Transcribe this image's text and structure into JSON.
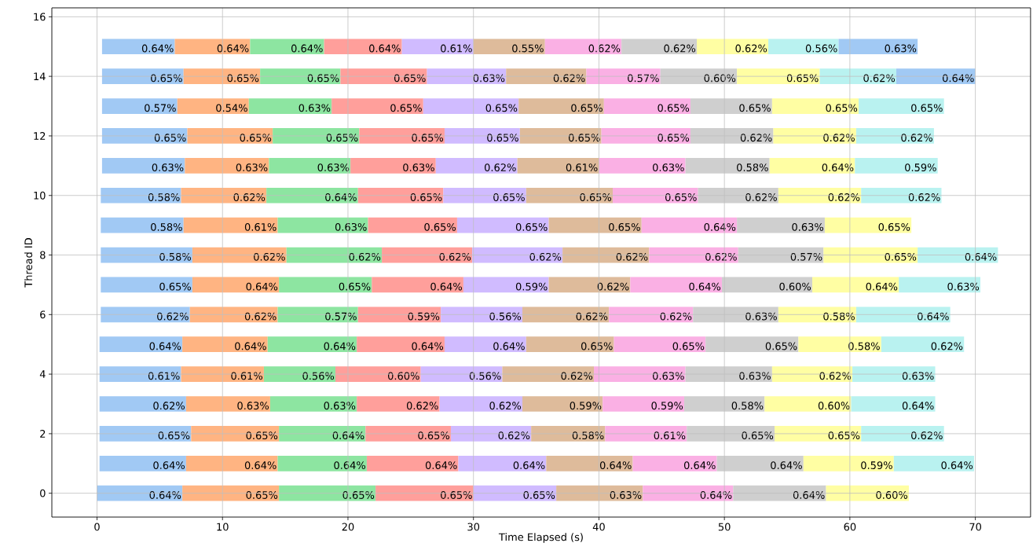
{
  "chart_data": {
    "type": "bar",
    "orientation": "horizontal",
    "xlabel": "Time Elapsed (s)",
    "ylabel": "Thread ID",
    "x": [
      0,
      1,
      2,
      3,
      4,
      5,
      6,
      7,
      8,
      9,
      10,
      11,
      12,
      13,
      14,
      15
    ],
    "xlim": [
      -3.6,
      74.4
    ],
    "xticks": [
      0,
      10,
      20,
      30,
      40,
      50,
      60,
      70
    ],
    "ylim": [
      -0.8,
      16.3
    ],
    "yticks": [
      0,
      2,
      4,
      6,
      8,
      10,
      12,
      14,
      16
    ],
    "grid": true,
    "series": [
      {
        "color": "#a1c9f4",
        "base": [
          0.0,
          0.2,
          0.2,
          0.2,
          0.2,
          0.2,
          0.3,
          0.3,
          0.3,
          0.3,
          0.3,
          0.4,
          0.4,
          0.4,
          0.4,
          0.4
        ],
        "values": [
          6.8,
          6.9,
          7.3,
          6.9,
          6.5,
          6.6,
          7.1,
          7.3,
          7.3,
          6.6,
          6.4,
          6.6,
          6.8,
          6.0,
          6.5,
          5.8
        ]
      },
      {
        "color": "#ffb482",
        "base": [
          6.8,
          7.1,
          7.5,
          7.1,
          6.7,
          6.8,
          7.4,
          7.6,
          7.6,
          6.9,
          6.7,
          7.0,
          7.2,
          6.4,
          6.9,
          6.2
        ],
        "values": [
          7.7,
          7.3,
          7.0,
          6.7,
          6.6,
          6.8,
          7.0,
          6.9,
          7.5,
          7.5,
          6.8,
          6.7,
          6.8,
          5.7,
          6.1,
          6.0
        ]
      },
      {
        "color": "#8de5a1",
        "base": [
          14.5,
          14.4,
          14.5,
          13.8,
          13.3,
          13.6,
          14.4,
          14.5,
          15.1,
          14.4,
          13.5,
          13.7,
          14.0,
          12.1,
          13.0,
          12.2
        ],
        "values": [
          7.7,
          7.1,
          6.9,
          6.9,
          5.7,
          7.1,
          6.4,
          7.4,
          7.6,
          7.2,
          7.3,
          6.5,
          6.9,
          6.6,
          6.4,
          5.9
        ]
      },
      {
        "color": "#ff9f9b",
        "base": [
          22.2,
          21.5,
          21.4,
          20.7,
          19.0,
          20.7,
          20.8,
          21.9,
          22.7,
          21.6,
          20.8,
          20.2,
          20.9,
          18.7,
          19.4,
          18.1
        ],
        "values": [
          7.8,
          7.3,
          6.8,
          6.6,
          6.8,
          7.0,
          6.6,
          7.3,
          7.2,
          7.1,
          6.8,
          6.8,
          6.8,
          7.3,
          6.9,
          6.2
        ]
      },
      {
        "color": "#d0bbff",
        "base": [
          30.0,
          28.8,
          28.2,
          27.3,
          25.8,
          27.7,
          27.4,
          29.2,
          29.9,
          28.7,
          27.6,
          27.0,
          27.7,
          26.0,
          26.3,
          24.3
        ],
        "values": [
          6.6,
          7.0,
          6.4,
          6.6,
          6.5,
          6.5,
          6.5,
          6.8,
          7.2,
          7.3,
          6.6,
          6.5,
          6.0,
          7.6,
          6.3,
          5.7
        ]
      },
      {
        "color": "#debb9b",
        "base": [
          36.6,
          35.8,
          34.6,
          33.9,
          32.3,
          34.2,
          33.9,
          36.0,
          37.1,
          36.0,
          34.2,
          33.5,
          33.7,
          33.6,
          32.6,
          30.0
        ],
        "values": [
          6.9,
          6.9,
          5.9,
          6.4,
          7.3,
          7.0,
          6.9,
          6.5,
          6.9,
          7.4,
          6.9,
          6.5,
          6.5,
          6.8,
          6.4,
          5.7
        ]
      },
      {
        "color": "#fab0e4",
        "base": [
          43.5,
          42.7,
          40.5,
          40.3,
          39.6,
          41.2,
          40.8,
          42.5,
          44.0,
          43.4,
          41.1,
          40.0,
          40.2,
          40.4,
          39.0,
          35.7
        ],
        "values": [
          7.2,
          6.7,
          6.5,
          6.5,
          7.3,
          7.3,
          6.7,
          7.3,
          7.1,
          7.6,
          6.8,
          6.9,
          7.1,
          6.9,
          5.9,
          6.1
        ]
      },
      {
        "color": "#cfcfcf",
        "base": [
          50.7,
          49.4,
          47.0,
          46.8,
          46.9,
          48.5,
          47.5,
          49.8,
          51.1,
          51.0,
          47.9,
          46.9,
          47.3,
          47.3,
          44.9,
          41.8
        ],
        "values": [
          7.4,
          6.9,
          7.0,
          6.4,
          6.9,
          7.4,
          6.8,
          7.2,
          6.8,
          7.0,
          6.4,
          6.7,
          6.6,
          6.5,
          6.1,
          6.0
        ]
      },
      {
        "color": "#fffea3",
        "base": [
          58.1,
          56.3,
          54.0,
          53.2,
          53.8,
          55.9,
          54.3,
          57.0,
          57.9,
          58.0,
          54.3,
          53.6,
          53.9,
          53.8,
          51.0,
          47.8
        ],
        "values": [
          6.6,
          7.2,
          6.9,
          6.9,
          6.4,
          6.6,
          6.2,
          6.9,
          7.5,
          6.9,
          6.6,
          6.8,
          6.6,
          6.9,
          6.6,
          5.7
        ]
      },
      {
        "color": "#b9f2f0",
        "base": [
          null,
          63.5,
          60.9,
          60.1,
          60.2,
          62.5,
          60.5,
          63.9,
          65.4,
          null,
          60.9,
          60.4,
          60.5,
          60.7,
          57.6,
          53.5
        ],
        "values": [
          null,
          6.4,
          6.6,
          6.7,
          6.6,
          6.6,
          7.5,
          6.5,
          6.4,
          null,
          6.4,
          6.6,
          6.2,
          6.8,
          6.1,
          5.6
        ]
      },
      {
        "color": "#a1c9f4",
        "base": [
          null,
          null,
          null,
          null,
          null,
          null,
          null,
          null,
          null,
          null,
          null,
          null,
          null,
          null,
          63.7,
          59.1
        ],
        "values": [
          null,
          null,
          null,
          null,
          null,
          null,
          null,
          null,
          null,
          null,
          null,
          null,
          null,
          null,
          6.3,
          6.3
        ]
      }
    ],
    "annotations": [
      {
        "text": "0.64%",
        "x": 6.8,
        "y": 0
      },
      {
        "text": "0.65%",
        "x": 14.5,
        "y": 0
      },
      {
        "text": "0.65%",
        "x": 22.2,
        "y": 0
      },
      {
        "text": "0.65%",
        "x": 30.0,
        "y": 0
      },
      {
        "text": "0.65%",
        "x": 36.6,
        "y": 0
      },
      {
        "text": "0.63%",
        "x": 43.5,
        "y": 0
      },
      {
        "text": "0.64%",
        "x": 50.7,
        "y": 0
      },
      {
        "text": "0.64%",
        "x": 58.1,
        "y": 0
      },
      {
        "text": "0.60%",
        "x": 64.7,
        "y": 0
      },
      {
        "text": "0.64%",
        "x": 7.1,
        "y": 1
      },
      {
        "text": "0.64%",
        "x": 14.4,
        "y": 1
      },
      {
        "text": "0.64%",
        "x": 21.5,
        "y": 1
      },
      {
        "text": "0.64%",
        "x": 28.8,
        "y": 1
      },
      {
        "text": "0.64%",
        "x": 35.8,
        "y": 1
      },
      {
        "text": "0.64%",
        "x": 42.7,
        "y": 1
      },
      {
        "text": "0.64%",
        "x": 49.4,
        "y": 1
      },
      {
        "text": "0.64%",
        "x": 56.3,
        "y": 1
      },
      {
        "text": "0.59%",
        "x": 63.5,
        "y": 1
      },
      {
        "text": "0.64%",
        "x": 69.9,
        "y": 1
      },
      {
        "text": "0.65%",
        "x": 7.5,
        "y": 2
      },
      {
        "text": "0.65%",
        "x": 14.5,
        "y": 2
      },
      {
        "text": "0.64%",
        "x": 21.4,
        "y": 2
      },
      {
        "text": "0.65%",
        "x": 28.2,
        "y": 2
      },
      {
        "text": "0.62%",
        "x": 34.6,
        "y": 2
      },
      {
        "text": "0.58%",
        "x": 40.5,
        "y": 2
      },
      {
        "text": "0.61%",
        "x": 47.0,
        "y": 2
      },
      {
        "text": "0.65%",
        "x": 54.0,
        "y": 2
      },
      {
        "text": "0.65%",
        "x": 60.9,
        "y": 2
      },
      {
        "text": "0.62%",
        "x": 67.5,
        "y": 2
      },
      {
        "text": "0.62%",
        "x": 7.1,
        "y": 3
      },
      {
        "text": "0.63%",
        "x": 13.8,
        "y": 3
      },
      {
        "text": "0.63%",
        "x": 20.7,
        "y": 3
      },
      {
        "text": "0.62%",
        "x": 27.3,
        "y": 3
      },
      {
        "text": "0.62%",
        "x": 33.9,
        "y": 3
      },
      {
        "text": "0.59%",
        "x": 40.3,
        "y": 3
      },
      {
        "text": "0.59%",
        "x": 46.8,
        "y": 3
      },
      {
        "text": "0.58%",
        "x": 53.2,
        "y": 3
      },
      {
        "text": "0.60%",
        "x": 60.1,
        "y": 3
      },
      {
        "text": "0.64%",
        "x": 66.8,
        "y": 3
      },
      {
        "text": "0.61%",
        "x": 6.7,
        "y": 4
      },
      {
        "text": "0.61%",
        "x": 13.3,
        "y": 4
      },
      {
        "text": "0.56%",
        "x": 19.0,
        "y": 4
      },
      {
        "text": "0.60%",
        "x": 25.8,
        "y": 4
      },
      {
        "text": "0.56%",
        "x": 32.3,
        "y": 4
      },
      {
        "text": "0.62%",
        "x": 39.6,
        "y": 4
      },
      {
        "text": "0.63%",
        "x": 46.9,
        "y": 4
      },
      {
        "text": "0.63%",
        "x": 53.8,
        "y": 4
      },
      {
        "text": "0.62%",
        "x": 60.2,
        "y": 4
      },
      {
        "text": "0.63%",
        "x": 66.8,
        "y": 4
      },
      {
        "text": "0.64%",
        "x": 6.8,
        "y": 5
      },
      {
        "text": "0.64%",
        "x": 13.6,
        "y": 5
      },
      {
        "text": "0.64%",
        "x": 20.7,
        "y": 5
      },
      {
        "text": "0.64%",
        "x": 27.7,
        "y": 5
      },
      {
        "text": "0.64%",
        "x": 34.2,
        "y": 5
      },
      {
        "text": "0.65%",
        "x": 41.2,
        "y": 5
      },
      {
        "text": "0.65%",
        "x": 48.5,
        "y": 5
      },
      {
        "text": "0.65%",
        "x": 55.9,
        "y": 5
      },
      {
        "text": "0.58%",
        "x": 62.5,
        "y": 5
      },
      {
        "text": "0.62%",
        "x": 69.1,
        "y": 5
      },
      {
        "text": "0.62%",
        "x": 7.4,
        "y": 6
      },
      {
        "text": "0.62%",
        "x": 14.4,
        "y": 6
      },
      {
        "text": "0.57%",
        "x": 20.8,
        "y": 6
      },
      {
        "text": "0.59%",
        "x": 27.4,
        "y": 6
      },
      {
        "text": "0.56%",
        "x": 33.9,
        "y": 6
      },
      {
        "text": "0.62%",
        "x": 40.8,
        "y": 6
      },
      {
        "text": "0.62%",
        "x": 47.5,
        "y": 6
      },
      {
        "text": "0.63%",
        "x": 54.3,
        "y": 6
      },
      {
        "text": "0.58%",
        "x": 60.5,
        "y": 6
      },
      {
        "text": "0.64%",
        "x": 68.0,
        "y": 6
      },
      {
        "text": "0.65%",
        "x": 7.6,
        "y": 7
      },
      {
        "text": "0.64%",
        "x": 14.5,
        "y": 7
      },
      {
        "text": "0.65%",
        "x": 21.9,
        "y": 7
      },
      {
        "text": "0.64%",
        "x": 29.2,
        "y": 7
      },
      {
        "text": "0.59%",
        "x": 36.0,
        "y": 7
      },
      {
        "text": "0.62%",
        "x": 42.5,
        "y": 7
      },
      {
        "text": "0.64%",
        "x": 49.8,
        "y": 7
      },
      {
        "text": "0.60%",
        "x": 57.0,
        "y": 7
      },
      {
        "text": "0.64%",
        "x": 63.9,
        "y": 7
      },
      {
        "text": "0.63%",
        "x": 70.4,
        "y": 7
      },
      {
        "text": "0.58%",
        "x": 7.6,
        "y": 8
      },
      {
        "text": "0.62%",
        "x": 15.1,
        "y": 8
      },
      {
        "text": "0.62%",
        "x": 22.7,
        "y": 8
      },
      {
        "text": "0.62%",
        "x": 29.9,
        "y": 8
      },
      {
        "text": "0.62%",
        "x": 37.1,
        "y": 8
      },
      {
        "text": "0.62%",
        "x": 44.0,
        "y": 8
      },
      {
        "text": "0.62%",
        "x": 51.1,
        "y": 8
      },
      {
        "text": "0.57%",
        "x": 57.9,
        "y": 8
      },
      {
        "text": "0.65%",
        "x": 65.4,
        "y": 8
      },
      {
        "text": "0.64%",
        "x": 71.8,
        "y": 8
      },
      {
        "text": "0.58%",
        "x": 6.9,
        "y": 9
      },
      {
        "text": "0.61%",
        "x": 14.4,
        "y": 9
      },
      {
        "text": "0.63%",
        "x": 21.6,
        "y": 9
      },
      {
        "text": "0.65%",
        "x": 28.7,
        "y": 9
      },
      {
        "text": "0.65%",
        "x": 36.0,
        "y": 9
      },
      {
        "text": "0.65%",
        "x": 43.4,
        "y": 9
      },
      {
        "text": "0.64%",
        "x": 51.0,
        "y": 9
      },
      {
        "text": "0.63%",
        "x": 58.0,
        "y": 9
      },
      {
        "text": "0.65%",
        "x": 64.9,
        "y": 9
      },
      {
        "text": "0.58%",
        "x": 6.7,
        "y": 10
      },
      {
        "text": "0.62%",
        "x": 13.5,
        "y": 10
      },
      {
        "text": "0.64%",
        "x": 20.8,
        "y": 10
      },
      {
        "text": "0.65%",
        "x": 27.6,
        "y": 10
      },
      {
        "text": "0.65%",
        "x": 34.2,
        "y": 10
      },
      {
        "text": "0.65%",
        "x": 41.1,
        "y": 10
      },
      {
        "text": "0.65%",
        "x": 47.9,
        "y": 10
      },
      {
        "text": "0.62%",
        "x": 54.3,
        "y": 10
      },
      {
        "text": "0.62%",
        "x": 60.9,
        "y": 10
      },
      {
        "text": "0.62%",
        "x": 67.3,
        "y": 10
      },
      {
        "text": "0.63%",
        "x": 7.0,
        "y": 11
      },
      {
        "text": "0.63%",
        "x": 13.7,
        "y": 11
      },
      {
        "text": "0.63%",
        "x": 20.2,
        "y": 11
      },
      {
        "text": "0.63%",
        "x": 27.0,
        "y": 11
      },
      {
        "text": "0.62%",
        "x": 33.5,
        "y": 11
      },
      {
        "text": "0.61%",
        "x": 40.0,
        "y": 11
      },
      {
        "text": "0.63%",
        "x": 46.9,
        "y": 11
      },
      {
        "text": "0.58%",
        "x": 53.6,
        "y": 11
      },
      {
        "text": "0.64%",
        "x": 60.4,
        "y": 11
      },
      {
        "text": "0.59%",
        "x": 67.0,
        "y": 11
      },
      {
        "text": "0.65%",
        "x": 7.2,
        "y": 12
      },
      {
        "text": "0.65%",
        "x": 14.0,
        "y": 12
      },
      {
        "text": "0.65%",
        "x": 20.9,
        "y": 12
      },
      {
        "text": "0.65%",
        "x": 27.7,
        "y": 12
      },
      {
        "text": "0.65%",
        "x": 33.7,
        "y": 12
      },
      {
        "text": "0.65%",
        "x": 40.2,
        "y": 12
      },
      {
        "text": "0.65%",
        "x": 47.3,
        "y": 12
      },
      {
        "text": "0.62%",
        "x": 53.9,
        "y": 12
      },
      {
        "text": "0.62%",
        "x": 60.5,
        "y": 12
      },
      {
        "text": "0.62%",
        "x": 66.7,
        "y": 12
      },
      {
        "text": "0.57%",
        "x": 6.4,
        "y": 13
      },
      {
        "text": "0.54%",
        "x": 12.1,
        "y": 13
      },
      {
        "text": "0.63%",
        "x": 18.7,
        "y": 13
      },
      {
        "text": "0.65%",
        "x": 26.0,
        "y": 13
      },
      {
        "text": "0.65%",
        "x": 33.6,
        "y": 13
      },
      {
        "text": "0.65%",
        "x": 40.4,
        "y": 13
      },
      {
        "text": "0.65%",
        "x": 47.3,
        "y": 13
      },
      {
        "text": "0.65%",
        "x": 53.8,
        "y": 13
      },
      {
        "text": "0.65%",
        "x": 60.7,
        "y": 13
      },
      {
        "text": "0.65%",
        "x": 67.5,
        "y": 13
      },
      {
        "text": "0.65%",
        "x": 6.9,
        "y": 14
      },
      {
        "text": "0.65%",
        "x": 13.0,
        "y": 14
      },
      {
        "text": "0.65%",
        "x": 19.4,
        "y": 14
      },
      {
        "text": "0.65%",
        "x": 26.3,
        "y": 14
      },
      {
        "text": "0.63%",
        "x": 32.6,
        "y": 14
      },
      {
        "text": "0.62%",
        "x": 39.0,
        "y": 14
      },
      {
        "text": "0.57%",
        "x": 44.9,
        "y": 14
      },
      {
        "text": "0.60%",
        "x": 51.0,
        "y": 14
      },
      {
        "text": "0.65%",
        "x": 57.6,
        "y": 14
      },
      {
        "text": "0.62%",
        "x": 63.7,
        "y": 14
      },
      {
        "text": "0.64%",
        "x": 70.0,
        "y": 14
      },
      {
        "text": "0.64%",
        "x": 6.2,
        "y": 15
      },
      {
        "text": "0.64%",
        "x": 12.2,
        "y": 15
      },
      {
        "text": "0.64%",
        "x": 18.1,
        "y": 15
      },
      {
        "text": "0.64%",
        "x": 24.3,
        "y": 15
      },
      {
        "text": "0.61%",
        "x": 30.0,
        "y": 15
      },
      {
        "text": "0.55%",
        "x": 35.7,
        "y": 15
      },
      {
        "text": "0.62%",
        "x": 41.8,
        "y": 15
      },
      {
        "text": "0.62%",
        "x": 47.8,
        "y": 15
      },
      {
        "text": "0.62%",
        "x": 53.5,
        "y": 15
      },
      {
        "text": "0.56%",
        "x": 59.1,
        "y": 15
      },
      {
        "text": "0.63%",
        "x": 65.4,
        "y": 15
      }
    ]
  }
}
